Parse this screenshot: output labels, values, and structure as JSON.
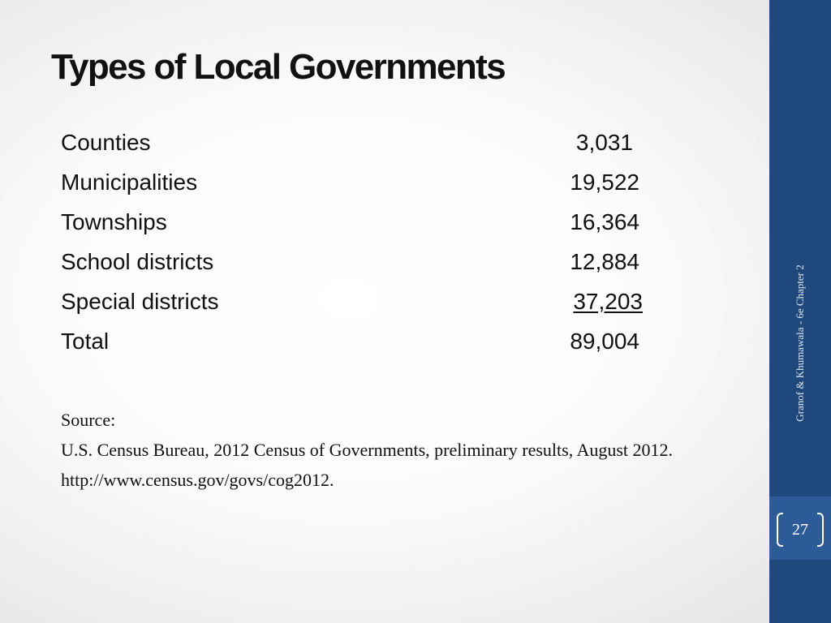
{
  "slide": {
    "title": "Types of Local Governments",
    "rows": [
      {
        "label": "Counties",
        "value": "3,031"
      },
      {
        "label": "Municipalities",
        "value": "19,522"
      },
      {
        "label": "Townships",
        "value": "16,364"
      },
      {
        "label": "School districts",
        "value": "12,884"
      },
      {
        "label": "Special districts",
        "value": "37,203"
      },
      {
        "label": "Total",
        "value": "89,004"
      }
    ],
    "source": {
      "label": "Source:",
      "citation": "U.S. Census Bureau, 2012 Census of Governments, preliminary results, August 2012.",
      "url": "http://www.census.gov/govs/cog2012."
    }
  },
  "sidebar": {
    "footer": "Granof & Khumawala - 6e  Chapter  2",
    "page_number": "27"
  },
  "colors": {
    "sidebar": "#1f497d",
    "sidebar_highlight": "#2c5b97",
    "text": "#111111"
  }
}
